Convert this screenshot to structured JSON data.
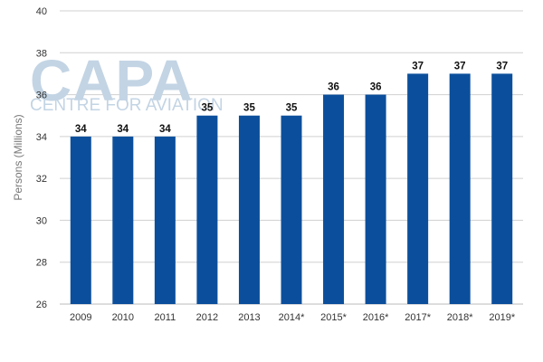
{
  "watermark": {
    "logo": "CAPA",
    "tagline": "CENTRE FOR AVIATION"
  },
  "colors": {
    "bar": "#0b4f9c",
    "grid": "#d0d0d0",
    "axis": "#bbbbbb"
  },
  "chart_data": {
    "type": "bar",
    "title": "",
    "xlabel": "",
    "ylabel": "Persons (Millions)",
    "ylim": [
      26,
      40
    ],
    "yticks": [
      26,
      28,
      30,
      32,
      34,
      36,
      38,
      40
    ],
    "grid": true,
    "categories": [
      "2009",
      "2010",
      "2011",
      "2012",
      "2013",
      "2014*",
      "2015*",
      "2016*",
      "2017*",
      "2018*",
      "2019*"
    ],
    "values": [
      34,
      34,
      34,
      35,
      35,
      35,
      36,
      36,
      37,
      37,
      37
    ],
    "data_labels": [
      "34",
      "34",
      "34",
      "35",
      "35",
      "35",
      "36",
      "36",
      "37",
      "37",
      "37"
    ]
  }
}
